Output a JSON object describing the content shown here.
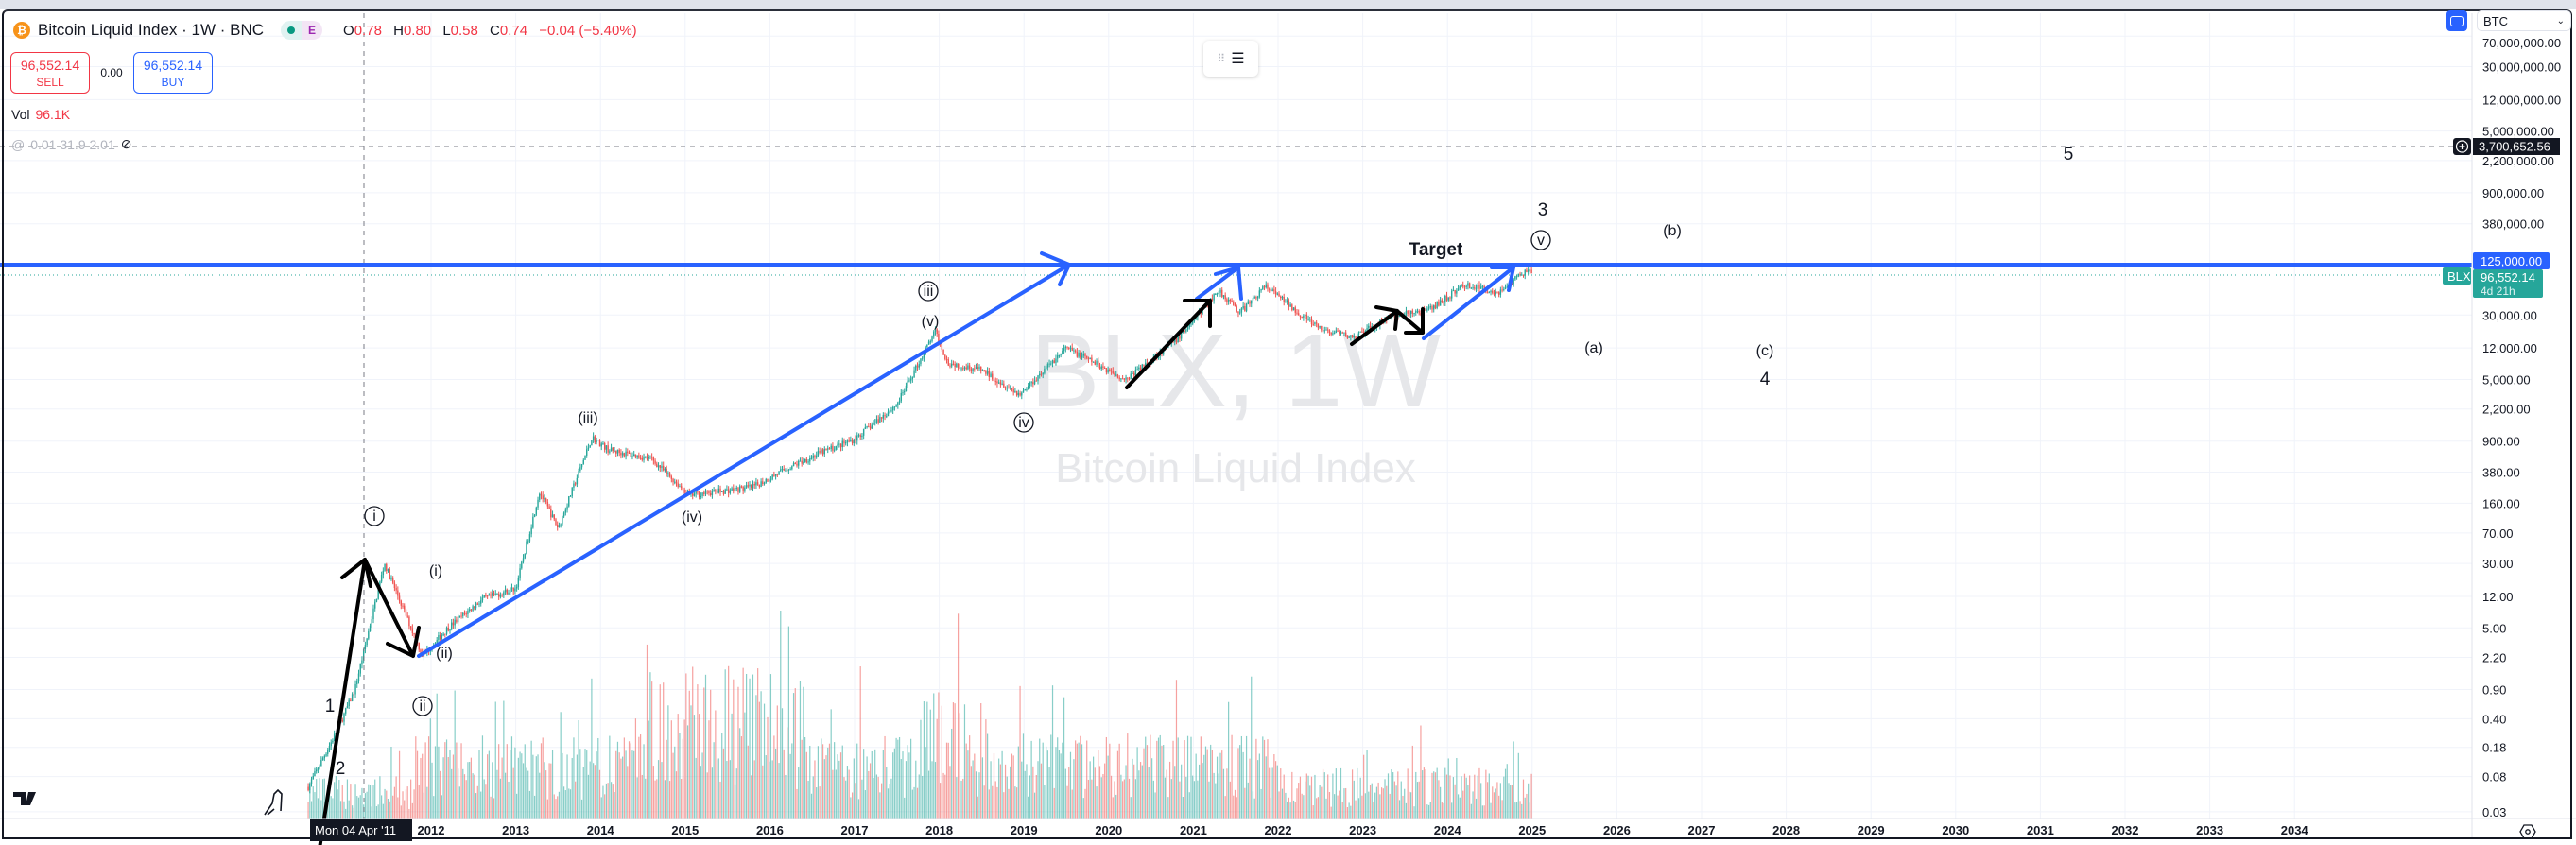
{
  "header": {
    "title": "Bitcoin Liquid Index · 1W · BNC",
    "badge_e": "E",
    "ohlc": {
      "o_label": "O",
      "o": "0.78",
      "h_label": "H",
      "h": "0.80",
      "l_label": "L",
      "l": "0.58",
      "c_label": "C",
      "c": "0.74",
      "change": "−0.04 (−5.40%)"
    }
  },
  "trade": {
    "sell_price": "96,552.14",
    "sell_label": "SELL",
    "spread": "0.00",
    "buy_price": "96,552.14",
    "buy_label": "BUY"
  },
  "volume": {
    "label": "Vol",
    "value": "96.1K"
  },
  "indicator": {
    "values": "0.01 31.9 2.01"
  },
  "currency_select": "BTC",
  "watermark": {
    "symbol": "BLX, 1W",
    "name": "Bitcoin Liquid Index"
  },
  "price_labels": {
    "crosshair_price": "3,700,652.56",
    "target_line": "125,000.00",
    "ticker": "BLX",
    "last_price": "96,552.14",
    "countdown": "4d 21h"
  },
  "crosshair_date": "Mon 04 Apr '11",
  "colors": {
    "up": "#26a69a",
    "down": "#ef5350",
    "drawing_blue": "#2962ff",
    "grid": "#f0f3fa"
  },
  "annotations": {
    "w1": "1",
    "w2": "2",
    "w3": "3",
    "w4": "4",
    "w5": "5",
    "ci": "i",
    "cii": "ii",
    "ciii": "iii",
    "civ": "iv",
    "cv": "v",
    "pi": "(i)",
    "pii": "(ii)",
    "piii": "(iii)",
    "piv": "(iv)",
    "pv": "(v)",
    "a": "(a)",
    "b": "(b)",
    "c": "(c)",
    "target": "Target"
  },
  "chart_data": {
    "type": "candlestick",
    "symbol": "BLX",
    "interval": "1W",
    "yscale": "log",
    "y_ticks": [
      "70,000,000.00",
      "30,000,000.00",
      "12,000,000.00",
      "5,000,000.00",
      "2,200,000.00",
      "900,000.00",
      "380,000.00",
      "125,000.00",
      "30,000.00",
      "12,000.00",
      "5,000.00",
      "2,200.00",
      "900.00",
      "380.00",
      "160.00",
      "70.00",
      "30.00",
      "12.00",
      "5.00",
      "2.20",
      "0.90",
      "0.40",
      "0.18",
      "0.08",
      "0.03"
    ],
    "y_tick_values": [
      70000000,
      30000000,
      12000000,
      5000000,
      2200000,
      900000,
      380000,
      125000,
      30000,
      12000,
      5000,
      2200,
      900,
      380,
      160,
      70,
      30,
      12,
      5,
      2.2,
      0.9,
      0.4,
      0.18,
      0.08,
      0.03
    ],
    "x_ticks": [
      "2012",
      "2013",
      "2014",
      "2015",
      "2016",
      "2017",
      "2018",
      "2019",
      "2020",
      "2021",
      "2022",
      "2023",
      "2024",
      "2025",
      "2026",
      "2027",
      "2028",
      "2029",
      "2030",
      "2031",
      "2032",
      "2033",
      "2034"
    ],
    "price_path": [
      [
        2010.55,
        0.06
      ],
      [
        2010.9,
        0.3
      ],
      [
        2011.1,
        0.9
      ],
      [
        2011.45,
        30
      ],
      [
        2011.9,
        2.3
      ],
      [
        2012.2,
        5
      ],
      [
        2012.6,
        11
      ],
      [
        2013.0,
        15
      ],
      [
        2013.28,
        220
      ],
      [
        2013.5,
        80
      ],
      [
        2013.9,
        1000
      ],
      [
        2014.1,
        700
      ],
      [
        2014.6,
        550
      ],
      [
        2015.05,
        200
      ],
      [
        2015.8,
        250
      ],
      [
        2016.2,
        420
      ],
      [
        2016.6,
        650
      ],
      [
        2017.0,
        950
      ],
      [
        2017.5,
        2500
      ],
      [
        2017.95,
        19000
      ],
      [
        2018.1,
        8000
      ],
      [
        2018.5,
        6500
      ],
      [
        2018.95,
        3300
      ],
      [
        2019.5,
        12000
      ],
      [
        2020.2,
        5000
      ],
      [
        2020.8,
        15000
      ],
      [
        2021.3,
        60000
      ],
      [
        2021.55,
        32000
      ],
      [
        2021.85,
        67000
      ],
      [
        2022.5,
        20000
      ],
      [
        2022.9,
        16000
      ],
      [
        2023.3,
        28000
      ],
      [
        2023.8,
        35000
      ],
      [
        2024.2,
        70000
      ],
      [
        2024.6,
        56000
      ],
      [
        2024.9,
        98000
      ],
      [
        2025.0,
        96552.14
      ]
    ],
    "horizontal_lines": [
      {
        "price": 125000,
        "style": "solid",
        "color": "#2962ff"
      },
      {
        "price": 3700652.56,
        "style": "dashed",
        "color": "#787b86"
      }
    ],
    "last_price": 96552.14,
    "grid": true
  }
}
